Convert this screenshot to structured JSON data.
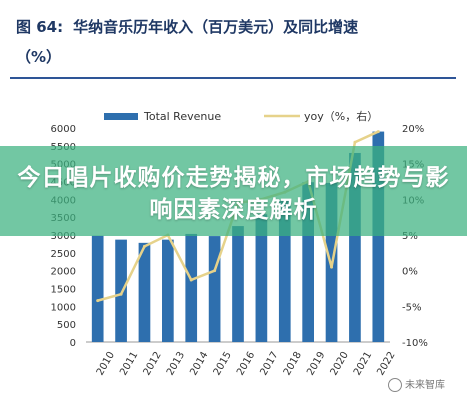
{
  "figure": {
    "label": "图 64:",
    "title_line1": "华纳音乐历年收入（百万美元）及同比增速",
    "title_line2": "（%）"
  },
  "banner": {
    "text": "今日唱片收购价走势揭秘，市场趋势与影响因素深度解析"
  },
  "watermark": {
    "text": "未来智库"
  },
  "colors": {
    "bar": "#2e6fae",
    "line": "#e6d28a",
    "title": "#1f3864",
    "rule": "#2e5597",
    "banner": "#3cb280"
  },
  "chart_data": {
    "type": "bar",
    "categories": [
      "2010",
      "2011",
      "2012",
      "2013",
      "2014",
      "2015",
      "2016",
      "2017",
      "2018",
      "2019",
      "2020",
      "2021",
      "2022"
    ],
    "series": [
      {
        "name": "Total Revenue",
        "type": "bar",
        "axis": "left",
        "values": [
          2980,
          2870,
          2780,
          2870,
          3030,
          2970,
          3250,
          3580,
          3960,
          4480,
          4460,
          5300,
          5900
        ]
      },
      {
        "name": "yoy（%，右）",
        "type": "line",
        "axis": "right",
        "values": [
          -4.2,
          -3.3,
          3.4,
          5.0,
          -1.3,
          0.0,
          9.5,
          10.0,
          11.0,
          12.5,
          0.5,
          18.0,
          19.5
        ]
      }
    ],
    "y_left": {
      "ticks": [
        "0",
        "500",
        "1000",
        "1500",
        "2000",
        "2500",
        "3000",
        "3500",
        "4000",
        "4500",
        "5000",
        "5500",
        "6000"
      ],
      "ylim": [
        0,
        6000
      ]
    },
    "y_right": {
      "ticks": [
        "-10%",
        "-5%",
        "0%",
        "5%",
        "10%",
        "15%",
        "20%"
      ],
      "ylim": [
        -10,
        20
      ]
    },
    "legend": {
      "position": "top",
      "entries": [
        "Total Revenue",
        "yoy（%，右）"
      ]
    },
    "grid": false
  }
}
